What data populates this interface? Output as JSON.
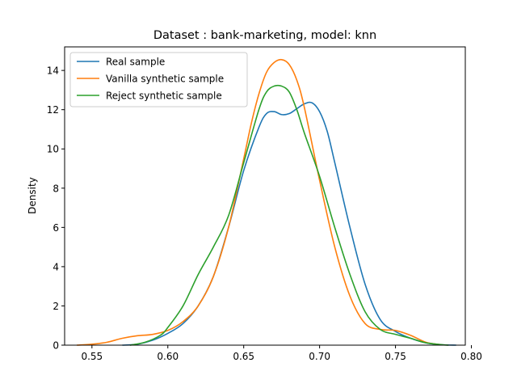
{
  "chart_data": {
    "type": "line",
    "title": "Dataset : bank-marketing, model: knn",
    "xlabel": "",
    "ylabel": "Density",
    "xlim": [
      0.532,
      0.796
    ],
    "ylim": [
      0,
      15.2
    ],
    "xticks": [
      "0.55",
      "0.60",
      "0.65",
      "0.70",
      "0.75",
      "0.80"
    ],
    "xtick_values": [
      0.55,
      0.6,
      0.65,
      0.7,
      0.75,
      0.8
    ],
    "yticks": [
      "0",
      "2",
      "4",
      "6",
      "8",
      "10",
      "12",
      "14"
    ],
    "ytick_values": [
      0,
      2,
      4,
      6,
      8,
      10,
      12,
      14
    ],
    "grid": false,
    "legend_position": "top-left",
    "series": [
      {
        "name": "Real sample",
        "color": "#1f77b4",
        "x": [
          0.57,
          0.58,
          0.59,
          0.6,
          0.61,
          0.62,
          0.63,
          0.64,
          0.65,
          0.66,
          0.665,
          0.67,
          0.675,
          0.68,
          0.685,
          0.69,
          0.695,
          0.7,
          0.705,
          0.71,
          0.72,
          0.73,
          0.74,
          0.75,
          0.76,
          0.77,
          0.78,
          0.79
        ],
        "y": [
          0.0,
          0.05,
          0.25,
          0.6,
          1.1,
          2.0,
          3.5,
          6.0,
          8.9,
          11.1,
          11.8,
          11.9,
          11.75,
          11.8,
          12.05,
          12.3,
          12.35,
          11.9,
          10.9,
          9.3,
          6.0,
          3.1,
          1.3,
          0.7,
          0.35,
          0.12,
          0.02,
          0.0
        ]
      },
      {
        "name": "Vanilla synthetic sample",
        "color": "#ff7f0e",
        "x": [
          0.54,
          0.55,
          0.56,
          0.57,
          0.58,
          0.59,
          0.6,
          0.61,
          0.62,
          0.63,
          0.64,
          0.65,
          0.655,
          0.66,
          0.665,
          0.67,
          0.675,
          0.68,
          0.685,
          0.69,
          0.7,
          0.71,
          0.72,
          0.73,
          0.74,
          0.75,
          0.76,
          0.77,
          0.78
        ],
        "y": [
          0.0,
          0.05,
          0.15,
          0.35,
          0.48,
          0.55,
          0.75,
          1.2,
          2.0,
          3.5,
          6.0,
          9.5,
          11.3,
          12.8,
          13.9,
          14.4,
          14.55,
          14.3,
          13.5,
          12.1,
          8.4,
          5.0,
          2.5,
          1.1,
          0.8,
          0.75,
          0.5,
          0.15,
          0.02
        ]
      },
      {
        "name": "Reject synthetic sample",
        "color": "#2ca02c",
        "x": [
          0.575,
          0.585,
          0.595,
          0.6,
          0.61,
          0.62,
          0.63,
          0.64,
          0.65,
          0.66,
          0.665,
          0.67,
          0.675,
          0.68,
          0.685,
          0.69,
          0.7,
          0.71,
          0.72,
          0.73,
          0.74,
          0.75,
          0.76,
          0.77,
          0.78,
          0.785
        ],
        "y": [
          0.0,
          0.15,
          0.5,
          0.9,
          2.0,
          3.6,
          5.0,
          6.6,
          9.3,
          12.0,
          12.9,
          13.2,
          13.2,
          12.9,
          12.0,
          10.8,
          8.6,
          6.0,
          3.6,
          1.7,
          0.8,
          0.55,
          0.35,
          0.12,
          0.03,
          0.0
        ]
      }
    ]
  }
}
